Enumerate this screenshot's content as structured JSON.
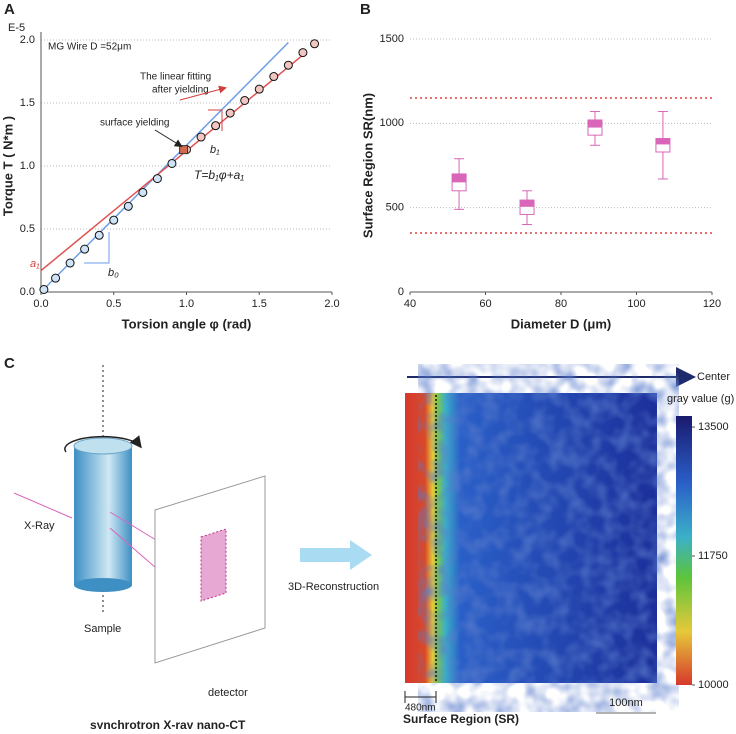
{
  "chart_data": [
    {
      "type": "scatter",
      "panel": "A",
      "exponent_label": "E-5",
      "xlabel": "Torsion angle φ (rad)",
      "ylabel": "Torque T ( N*m )",
      "annotations": {
        "sample": "MG Wire D =52μm",
        "fit_1": "The linear fitting",
        "fit_2": "after yielding",
        "yield": "surface yielding",
        "equation": "T=b₁φ+a₁",
        "b1": "b₁",
        "b0": "b₀",
        "a1": "a₁"
      },
      "x": [
        0.02,
        0.1,
        0.2,
        0.3,
        0.4,
        0.5,
        0.6,
        0.7,
        0.8,
        0.9,
        1.0,
        1.1,
        1.2,
        1.3,
        1.4,
        1.5,
        1.6,
        1.7,
        1.8,
        1.88
      ],
      "values": [
        0.02,
        0.11,
        0.23,
        0.34,
        0.45,
        0.57,
        0.68,
        0.79,
        0.9,
        1.02,
        1.13,
        1.23,
        1.32,
        1.42,
        1.52,
        1.61,
        1.71,
        1.8,
        1.9,
        1.97
      ],
      "yield_point": {
        "x": 0.98,
        "y": 1.13,
        "color": "#d2694f"
      },
      "fit_lines": [
        {
          "color": "#6f9ee8",
          "x": [
            0,
            1.7
          ],
          "y": [
            0,
            1.98
          ]
        },
        {
          "color": "#e05050",
          "x": [
            0,
            1.82
          ],
          "y": [
            0.17,
            1.9
          ]
        }
      ],
      "xlim": [
        0,
        2.0
      ],
      "ylim": [
        0,
        2.0
      ],
      "xticks": [
        {
          "value": 0,
          "label": "0.0"
        },
        {
          "value": 0.5,
          "label": "0.5"
        },
        {
          "value": 1,
          "label": "1.0"
        },
        {
          "value": 1.5,
          "label": "1.5"
        },
        {
          "value": 2,
          "label": "2.0"
        }
      ],
      "yticks": [
        {
          "value": 0,
          "label": "0.0"
        },
        {
          "value": 0.5,
          "label": "0.5"
        },
        {
          "value": 1,
          "label": "1.0"
        },
        {
          "value": 1.5,
          "label": "1.5"
        },
        {
          "value": 2,
          "label": "2.0"
        }
      ],
      "grid": true
    },
    {
      "type": "box",
      "panel": "B",
      "xlabel": "Diameter D (μm)",
      "ylabel": "Surface  Region SR(nm)",
      "color": "#d966b8",
      "x": [
        53,
        71,
        89,
        107
      ],
      "whislo": [
        490,
        400,
        870,
        670
      ],
      "q1": [
        600,
        460,
        930,
        830
      ],
      "med": [
        650,
        505,
        975,
        875
      ],
      "q3": [
        700,
        545,
        1020,
        910
      ],
      "whishi": [
        790,
        600,
        1070,
        1070
      ],
      "hlines": [
        1150,
        350
      ],
      "xlim": [
        40,
        120
      ],
      "ylim": [
        0,
        1500
      ],
      "xticks": [
        40,
        60,
        80,
        100,
        120
      ],
      "yticks": [
        0,
        500,
        1000,
        1500
      ],
      "grid": true
    }
  ],
  "panel_c": {
    "label": "C",
    "xray": "X-Ray",
    "sample": "Sample",
    "detector": "detector",
    "caption": "synchrotron X-ray nano-CT",
    "reconstruction": "3D-Reconstruction",
    "center": "Center",
    "colorbar_title": "gray value (g)",
    "colorbar_lim": [
      10000,
      13650
    ],
    "colorbar_ticks": [
      10000,
      11750,
      13500
    ],
    "width_label": "480nm",
    "scale_label": "100nm",
    "xlabel": "Surface Region (SR)"
  }
}
